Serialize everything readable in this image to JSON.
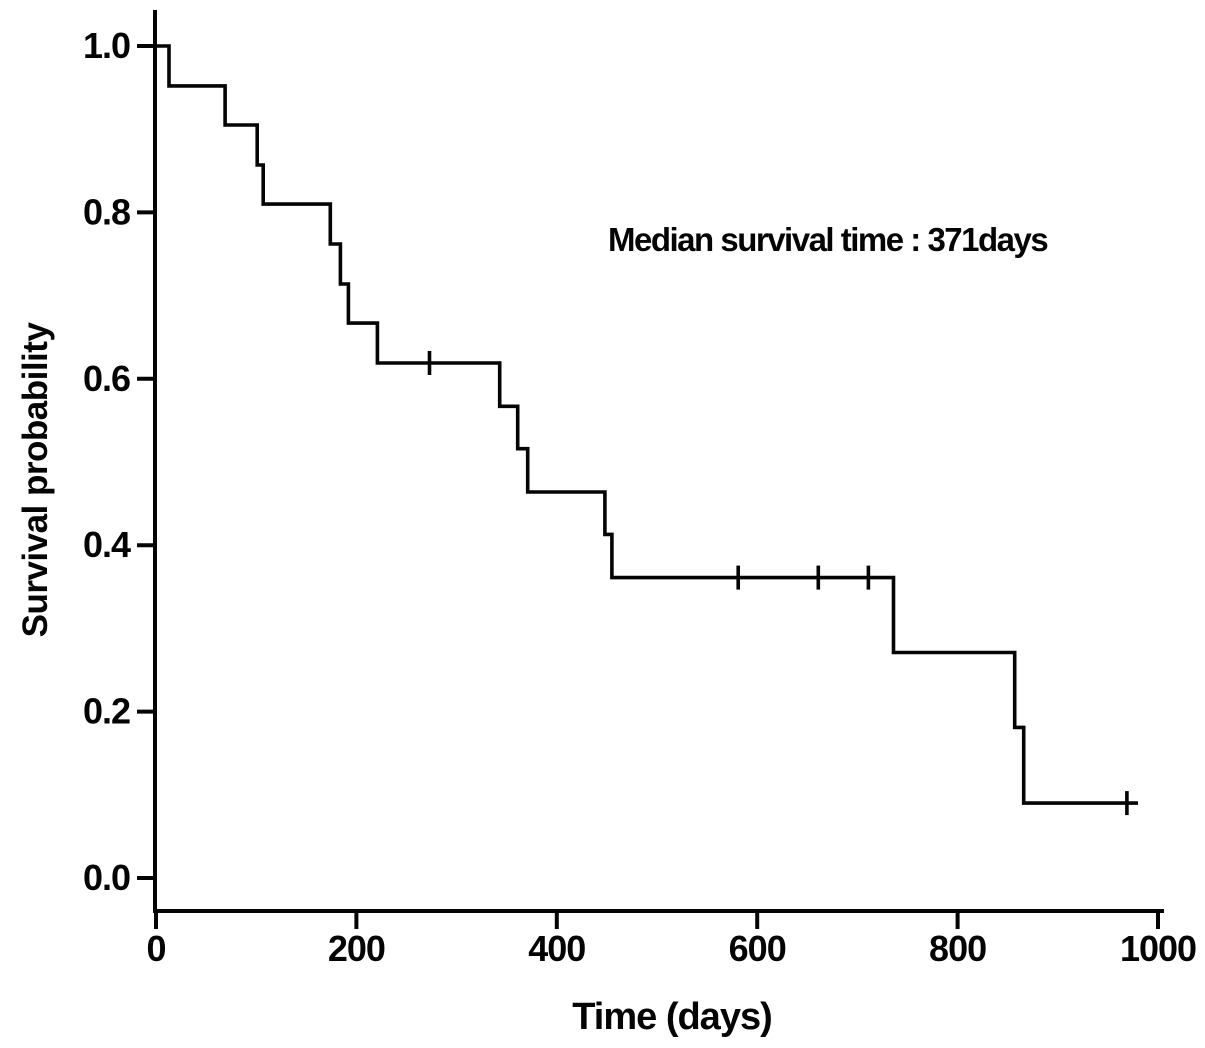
{
  "figure": {
    "background_color": "#ffffff",
    "line_color": "#040404"
  },
  "chart_data": {
    "type": "line",
    "subtype": "kaplan-meier-step-curve",
    "title": "",
    "xlabel": "Time (days)",
    "ylabel": "Survival probability",
    "annotation": "Median survival time : 371days",
    "grid": false,
    "legend": "none",
    "xlim": [
      0,
      1000
    ],
    "ylim": [
      0.0,
      1.0
    ],
    "x_ticks": [
      {
        "value": 0,
        "label": "0"
      },
      {
        "value": 200,
        "label": "200"
      },
      {
        "value": 400,
        "label": "400"
      },
      {
        "value": 600,
        "label": "600"
      },
      {
        "value": 800,
        "label": "800"
      },
      {
        "value": 1000,
        "label": "1000"
      }
    ],
    "y_ticks": [
      {
        "value": 1.0,
        "label": "1.0"
      },
      {
        "value": 0.8,
        "label": "0.8"
      },
      {
        "value": 0.6,
        "label": "0.6"
      },
      {
        "value": 0.4,
        "label": "0.4"
      },
      {
        "value": 0.2,
        "label": "0.2"
      },
      {
        "value": 0.0,
        "label": "0.0"
      }
    ],
    "series": [
      {
        "points": [
          [
            0,
            1.0
          ],
          [
            13,
            0.952
          ],
          [
            69,
            0.905
          ],
          [
            101,
            0.857
          ],
          [
            107,
            0.81
          ],
          [
            174,
            0.762
          ],
          [
            184,
            0.714
          ],
          [
            192,
            0.667
          ],
          [
            221,
            0.619
          ],
          [
            343,
            0.567
          ],
          [
            361,
            0.516
          ],
          [
            371,
            0.464
          ],
          [
            448,
            0.413
          ],
          [
            455,
            0.361
          ],
          [
            736,
            0.271
          ],
          [
            857,
            0.181
          ],
          [
            866,
            0.09
          ]
        ],
        "censor_marks": [
          [
            273,
            0.619
          ],
          [
            581,
            0.361
          ],
          [
            661,
            0.361
          ],
          [
            711,
            0.361
          ],
          [
            969,
            0.09
          ]
        ],
        "end_time": 980
      }
    ]
  }
}
